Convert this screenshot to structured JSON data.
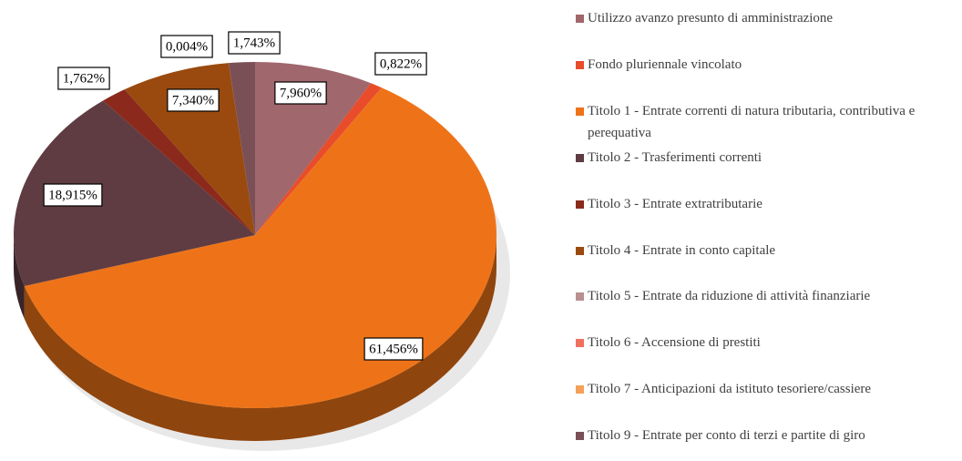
{
  "chart_data": {
    "type": "pie",
    "categories": [
      "Utilizzo avanzo presunto di amministrazione",
      "Fondo pluriennale vincolato",
      "Titolo 1 - Entrate correnti di natura tributaria, contributiva e perequativa",
      "Titolo 2 - Trasferimenti correnti",
      "Titolo 3 - Entrate extratributarie",
      "Titolo 4 - Entrate in conto capitale",
      "Titolo 5 - Entrate da riduzione di attività finanziarie",
      "Titolo 6 - Accensione di prestiti",
      "Titolo 7 - Anticipazioni da istituto tesoriere/cassiere",
      "Titolo 9 - Entrate per conto di terzi e partite di giro"
    ],
    "values": [
      7.96,
      0.822,
      61.456,
      18.915,
      1.762,
      7.34,
      0.004,
      0,
      0,
      1.743
    ],
    "value_labels": [
      "7,960%",
      "0,822%",
      "61,456%",
      "18,915%",
      "1,762%",
      "7,340%",
      "0,004%",
      null,
      null,
      "1,743%"
    ],
    "colors": [
      "#a0676c",
      "#e84c2b",
      "#ee7318",
      "#5e3c42",
      "#8b2a1c",
      "#9a4a0e",
      "#b89090",
      "#f07060",
      "#f5a05a",
      "#7a5056"
    ]
  }
}
